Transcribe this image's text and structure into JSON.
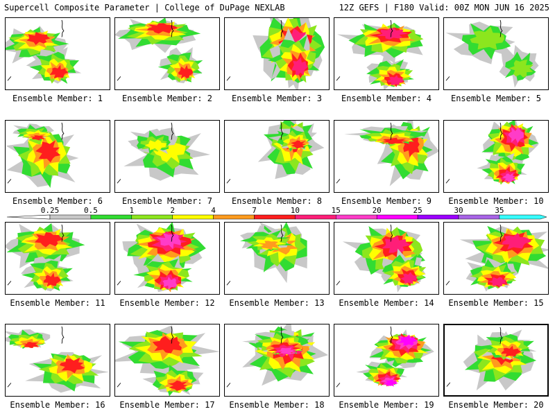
{
  "header": {
    "title": "Supercell Composite Parameter | College of DuPage NEXLAB",
    "run_info": "12Z GEFS | F180 Valid: 00Z MON JUN 16 2025"
  },
  "colorbar": {
    "levels": [
      "0.25",
      "0.5",
      "1",
      "2",
      "4",
      "7",
      "10",
      "15",
      "20",
      "25",
      "30",
      "35"
    ],
    "colors": [
      "#c8c8c8",
      "#32dc32",
      "#8ce61e",
      "#ffff00",
      "#ff9b1e",
      "#ff1e1e",
      "#ff1e78",
      "#ff3cc8",
      "#ff00ff",
      "#9b00ff",
      "#a864e6",
      "#37ffff"
    ]
  },
  "panels": [
    {
      "label": "Ensemble Member: 1",
      "max_level": 6
    },
    {
      "label": "Ensemble Member: 2",
      "max_level": 6
    },
    {
      "label": "Ensemble Member: 3",
      "max_level": 7
    },
    {
      "label": "Ensemble Member: 4",
      "max_level": 7
    },
    {
      "label": "Ensemble Member: 5",
      "max_level": 3
    },
    {
      "label": "Ensemble Member: 6",
      "max_level": 6
    },
    {
      "label": "Ensemble Member: 7",
      "max_level": 4
    },
    {
      "label": "Ensemble Member: 8",
      "max_level": 6
    },
    {
      "label": "Ensemble Member: 9",
      "max_level": 6
    },
    {
      "label": "Ensemble Member: 10",
      "max_level": 8
    },
    {
      "label": "Ensemble Member: 11",
      "max_level": 6
    },
    {
      "label": "Ensemble Member: 12",
      "max_level": 8
    },
    {
      "label": "Ensemble Member: 13",
      "max_level": 5
    },
    {
      "label": "Ensemble Member: 14",
      "max_level": 7
    },
    {
      "label": "Ensemble Member: 15",
      "max_level": 7
    },
    {
      "label": "Ensemble Member: 16",
      "max_level": 6
    },
    {
      "label": "Ensemble Member: 17",
      "max_level": 6
    },
    {
      "label": "Ensemble Member: 18",
      "max_level": 8
    },
    {
      "label": "Ensemble Member: 19",
      "max_level": 9
    },
    {
      "label": "Ensemble Member: 20",
      "max_level": 6
    }
  ],
  "selected_panel": 20
}
